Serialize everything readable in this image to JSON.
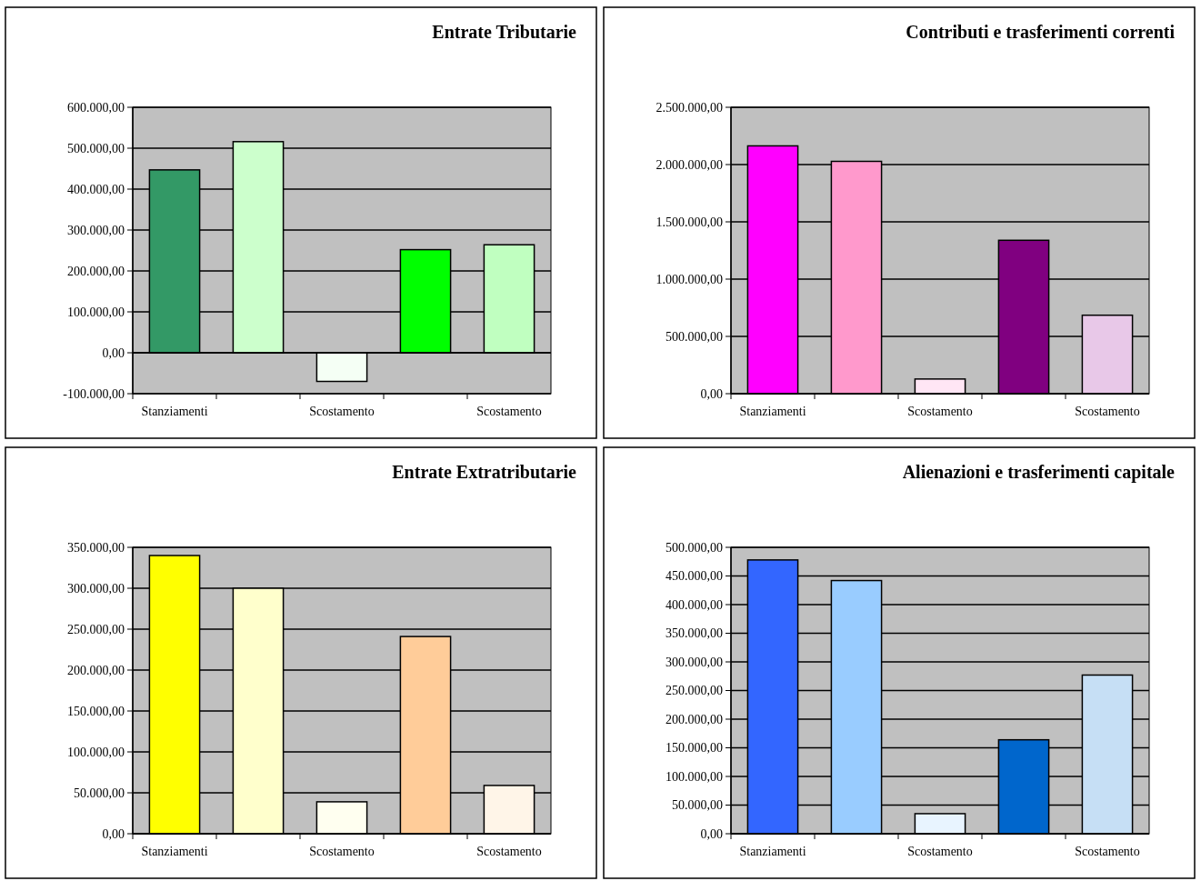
{
  "chart_data": [
    {
      "type": "bar",
      "title": "Entrate Tributarie",
      "categories": [
        "Stanziamenti",
        null,
        "Scostamento",
        null,
        "Scostamento"
      ],
      "values": [
        447000,
        516000,
        -70000,
        252000,
        264000
      ],
      "colors": [
        "#339966",
        "#ccffcc",
        "#f5fff5",
        "#00ff00",
        "#c0ffc0"
      ],
      "ylim": [
        -100000,
        600000
      ],
      "yticks": [
        {
          "value": -100000,
          "label": "-100.000,00"
        },
        {
          "value": 0,
          "label": "0,00"
        },
        {
          "value": 100000,
          "label": "100.000,00"
        },
        {
          "value": 200000,
          "label": "200.000,00"
        },
        {
          "value": 300000,
          "label": "300.000,00"
        },
        {
          "value": 400000,
          "label": "400.000,00"
        },
        {
          "value": 500000,
          "label": "500.000,00"
        },
        {
          "value": 600000,
          "label": "600.000,00"
        }
      ],
      "grid": "y"
    },
    {
      "type": "bar",
      "title": "Contributi e trasferimenti correnti",
      "categories": [
        "Stanziamenti",
        null,
        "Scostamento",
        null,
        "Scostamento"
      ],
      "values": [
        2163000,
        2028000,
        128000,
        1339000,
        685000
      ],
      "colors": [
        "#ff00ff",
        "#ff99cc",
        "#ffe6f5",
        "#800080",
        "#e8c8e8"
      ],
      "ylim": [
        0,
        2500000
      ],
      "yticks": [
        {
          "value": 0,
          "label": "0,00"
        },
        {
          "value": 500000,
          "label": "500.000,00"
        },
        {
          "value": 1000000,
          "label": "1.000.000,00"
        },
        {
          "value": 1500000,
          "label": "1.500.000,00"
        },
        {
          "value": 2000000,
          "label": "2.000.000,00"
        },
        {
          "value": 2500000,
          "label": "2.500.000,00"
        }
      ],
      "grid": "y"
    },
    {
      "type": "bar",
      "title": "Entrate Extratributarie",
      "categories": [
        "Stanziamenti",
        null,
        "Scostamento",
        null,
        "Scostamento"
      ],
      "values": [
        340000,
        300000,
        39000,
        241000,
        59000
      ],
      "colors": [
        "#ffff00",
        "#ffffcc",
        "#fffff0",
        "#ffcc99",
        "#fff5e8"
      ],
      "ylim": [
        0,
        350000
      ],
      "yticks": [
        {
          "value": 0,
          "label": "0,00"
        },
        {
          "value": 50000,
          "label": "50.000,00"
        },
        {
          "value": 100000,
          "label": "100.000,00"
        },
        {
          "value": 150000,
          "label": "150.000,00"
        },
        {
          "value": 200000,
          "label": "200.000,00"
        },
        {
          "value": 250000,
          "label": "250.000,00"
        },
        {
          "value": 300000,
          "label": "300.000,00"
        },
        {
          "value": 350000,
          "label": "350.000,00"
        }
      ],
      "grid": "y"
    },
    {
      "type": "bar",
      "title": "Alienazioni e trasferimenti capitale",
      "categories": [
        "Stanziamenti",
        null,
        "Scostamento",
        null,
        "Scostamento"
      ],
      "values": [
        478000,
        442000,
        35000,
        164000,
        277000
      ],
      "colors": [
        "#3366ff",
        "#99ccff",
        "#e8f4ff",
        "#0066cc",
        "#c6dff5"
      ],
      "ylim": [
        0,
        500000
      ],
      "yticks": [
        {
          "value": 0,
          "label": "0,00"
        },
        {
          "value": 50000,
          "label": "50.000,00"
        },
        {
          "value": 100000,
          "label": "100.000,00"
        },
        {
          "value": 150000,
          "label": "150.000,00"
        },
        {
          "value": 200000,
          "label": "200.000,00"
        },
        {
          "value": 250000,
          "label": "250.000,00"
        },
        {
          "value": 300000,
          "label": "300.000,00"
        },
        {
          "value": 350000,
          "label": "350.000,00"
        },
        {
          "value": 400000,
          "label": "400.000,00"
        },
        {
          "value": 450000,
          "label": "450.000,00"
        },
        {
          "value": 500000,
          "label": "500.000,00"
        }
      ],
      "grid": "y"
    }
  ]
}
